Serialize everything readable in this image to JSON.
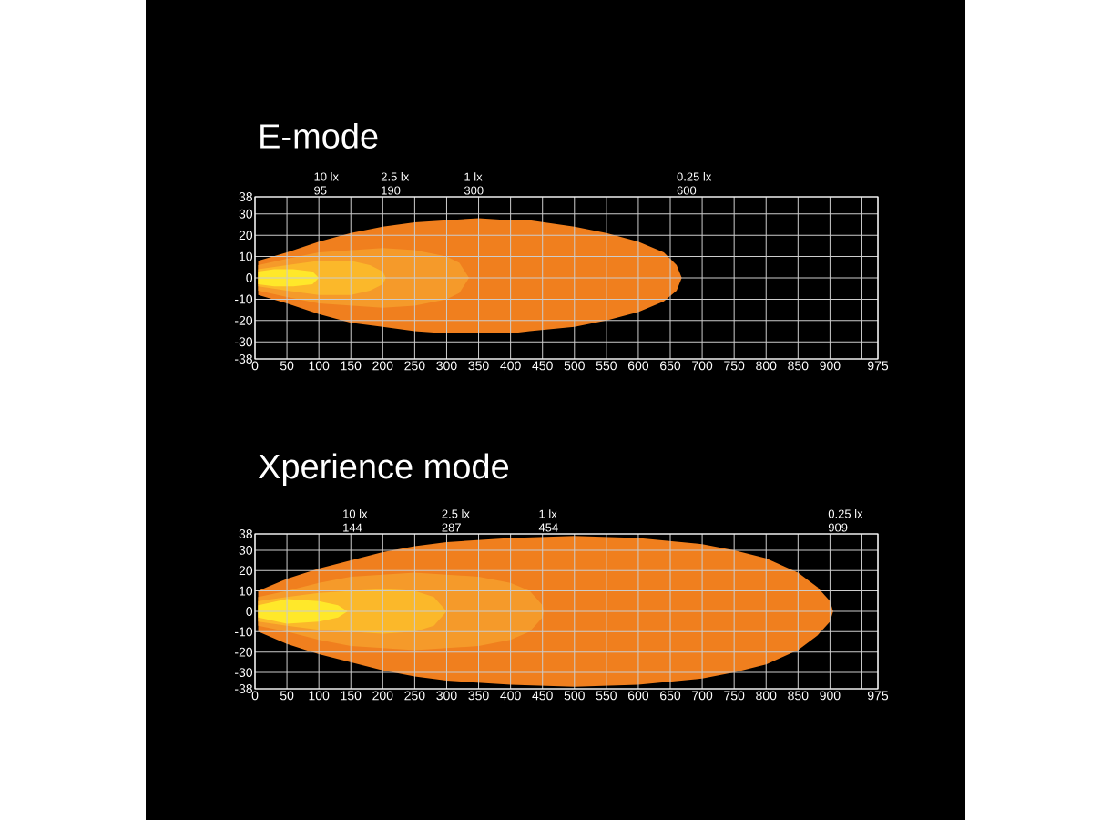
{
  "chart_data": [
    {
      "type": "area",
      "title": "E-mode",
      "xlim": [
        0,
        975
      ],
      "ylim": [
        -38,
        38
      ],
      "grid": true,
      "xticks": [
        0,
        50,
        100,
        150,
        200,
        250,
        300,
        350,
        400,
        450,
        500,
        550,
        600,
        650,
        700,
        750,
        800,
        850,
        900,
        {
          "value": 950,
          "label": null
        },
        975
      ],
      "yticks": [
        -38,
        -30,
        -20,
        -10,
        0,
        10,
        20,
        30,
        38
      ],
      "series": [
        {
          "color": "#f07f1e",
          "x": [
            5,
            50,
            100,
            150,
            200,
            250,
            300,
            350,
            400,
            430,
            500,
            550,
            600,
            640,
            660,
            668
          ],
          "values": [
            8,
            12,
            17,
            21,
            24,
            26,
            27,
            28,
            27,
            27,
            24,
            21,
            17,
            12,
            6,
            0
          ]
        },
        {
          "color": "#f07f1e",
          "x": [
            5,
            50,
            100,
            150,
            200,
            250,
            300,
            350,
            400,
            430,
            500,
            550,
            600,
            640,
            660,
            668
          ],
          "values": [
            -8,
            -12,
            -17,
            -21,
            -23,
            -25,
            -26,
            -26,
            -26,
            -25,
            -23,
            -20,
            -16,
            -11,
            -6,
            0
          ]
        },
        {
          "color": "#f59a2a",
          "x": [
            5,
            50,
            100,
            150,
            200,
            250,
            300,
            320,
            335
          ],
          "values": [
            6,
            9,
            12,
            13,
            14,
            13,
            10,
            7,
            0
          ]
        },
        {
          "color": "#f59a2a",
          "x": [
            5,
            50,
            100,
            150,
            200,
            250,
            300,
            320,
            335
          ],
          "values": [
            -6,
            -9,
            -12,
            -13,
            -14,
            -13,
            -10,
            -7,
            0
          ]
        },
        {
          "color": "#fbb82a",
          "x": [
            5,
            50,
            100,
            150,
            180,
            200,
            205
          ],
          "values": [
            4,
            6,
            8,
            8,
            6,
            3,
            0
          ]
        },
        {
          "color": "#fbb82a",
          "x": [
            5,
            50,
            100,
            150,
            180,
            200,
            205
          ],
          "values": [
            -4,
            -6,
            -8,
            -8,
            -6,
            -3,
            0
          ]
        },
        {
          "color": "#ffe82a",
          "x": [
            5,
            30,
            60,
            90,
            100
          ],
          "values": [
            3,
            4,
            4,
            3,
            0
          ]
        },
        {
          "color": "#ffe82a",
          "x": [
            5,
            30,
            60,
            90,
            100
          ],
          "values": [
            -3,
            -4,
            -4,
            -3,
            0
          ]
        }
      ],
      "annotations": [
        "10 lx",
        "95",
        "2.5 lx",
        "190",
        "1 lx",
        "300",
        "0.25 lx",
        "600"
      ]
    },
    {
      "type": "area",
      "title": "Xperience mode",
      "xlim": [
        0,
        975
      ],
      "ylim": [
        -38,
        38
      ],
      "grid": true,
      "xticks": [
        0,
        50,
        100,
        150,
        200,
        250,
        300,
        350,
        400,
        450,
        500,
        550,
        600,
        650,
        700,
        750,
        800,
        850,
        900,
        {
          "value": 950,
          "label": null
        },
        975
      ],
      "yticks": [
        -38,
        -30,
        -20,
        -10,
        0,
        10,
        20,
        30,
        38
      ],
      "series": [
        {
          "color": "#f07f1e",
          "x": [
            5,
            50,
            100,
            150,
            200,
            250,
            300,
            400,
            500,
            600,
            700,
            750,
            800,
            850,
            880,
            900,
            905
          ],
          "values": [
            10,
            16,
            21,
            25,
            29,
            32,
            34,
            36,
            37,
            36,
            33,
            30,
            26,
            19,
            12,
            5,
            0
          ]
        },
        {
          "color": "#f07f1e",
          "x": [
            5,
            50,
            100,
            150,
            200,
            250,
            300,
            400,
            500,
            600,
            700,
            750,
            800,
            850,
            880,
            900,
            905
          ],
          "values": [
            -10,
            -16,
            -21,
            -25,
            -29,
            -32,
            -34,
            -36,
            -37,
            -36,
            -33,
            -30,
            -26,
            -19,
            -12,
            -5,
            0
          ]
        },
        {
          "color": "#f59a2a",
          "x": [
            5,
            50,
            100,
            150,
            200,
            250,
            300,
            350,
            400,
            430,
            450,
            452
          ],
          "values": [
            7,
            10,
            14,
            17,
            18,
            19,
            18,
            17,
            14,
            10,
            3,
            0
          ]
        },
        {
          "color": "#f59a2a",
          "x": [
            5,
            50,
            100,
            150,
            200,
            250,
            300,
            350,
            400,
            430,
            450,
            452
          ],
          "values": [
            -7,
            -10,
            -14,
            -17,
            -18,
            -19,
            -18,
            -17,
            -14,
            -10,
            -3,
            0
          ]
        },
        {
          "color": "#fbb82a",
          "x": [
            5,
            50,
            100,
            150,
            200,
            250,
            280,
            300
          ],
          "values": [
            5,
            7,
            9,
            10,
            11,
            10,
            7,
            0
          ]
        },
        {
          "color": "#fbb82a",
          "x": [
            5,
            50,
            100,
            150,
            200,
            250,
            280,
            300
          ],
          "values": [
            -5,
            -7,
            -9,
            -10,
            -11,
            -10,
            -7,
            0
          ]
        },
        {
          "color": "#ffe82a",
          "x": [
            5,
            50,
            100,
            130,
            145
          ],
          "values": [
            3,
            6,
            5,
            3,
            0
          ]
        },
        {
          "color": "#ffe82a",
          "x": [
            5,
            50,
            100,
            130,
            145
          ],
          "values": [
            -3,
            -6,
            -5,
            -3,
            0
          ]
        }
      ],
      "annotations": [
        "10 lx",
        "144",
        "2.5 lx",
        "287",
        "1 lx",
        "454",
        "0.25 lx",
        "909"
      ]
    }
  ]
}
